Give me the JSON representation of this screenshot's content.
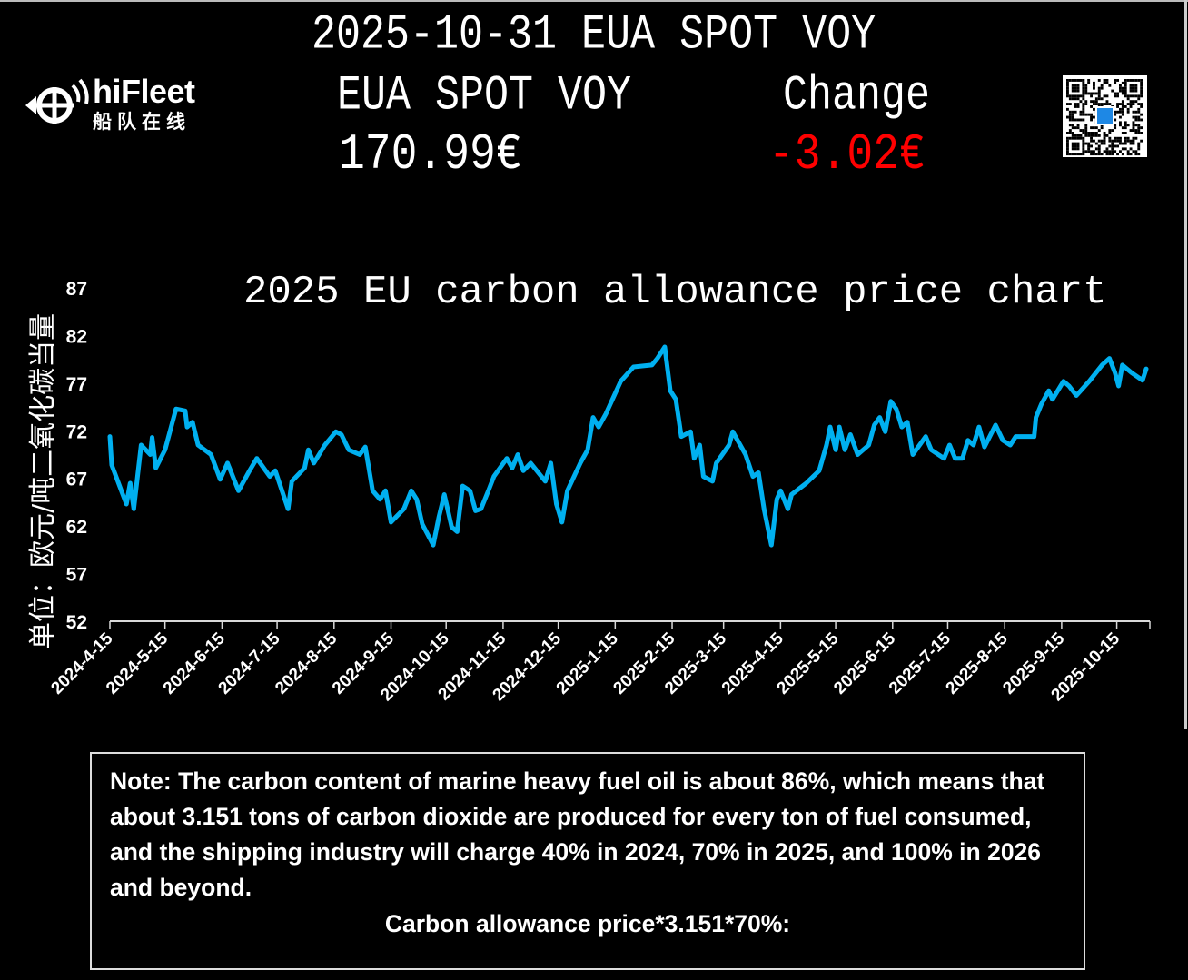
{
  "header": {
    "title": "2025-10-31 EUA SPOT VOY",
    "price_label": "EUA SPOT VOY",
    "change_label": "Change",
    "price_value": "170.99€",
    "change_value": "-3.02€",
    "change_color": "#ff0000"
  },
  "logo": {
    "brand": "hiFleet",
    "brand_cn": "船队在线"
  },
  "qr_code": {
    "icon": "qr-code-icon"
  },
  "chart_data": {
    "type": "line",
    "title": "2025 EU carbon allowance price chart",
    "ylabel": "单位：欧元/吨二氧化碳当量",
    "xlabel": "",
    "ylim": [
      52,
      87
    ],
    "yticks": [
      52,
      57,
      62,
      67,
      72,
      77,
      82,
      87
    ],
    "xlim": [
      "2024-04-15",
      "2025-11-02"
    ],
    "xticks": [
      "2024-4-15",
      "2024-5-15",
      "2024-6-15",
      "2024-7-15",
      "2024-8-15",
      "2024-9-15",
      "2024-10-15",
      "2024-11-15",
      "2024-12-15",
      "2025-1-15",
      "2025-2-15",
      "2025-3-15",
      "2025-4-15",
      "2025-5-15",
      "2025-6-15",
      "2025-7-15",
      "2025-8-15",
      "2025-9-15",
      "2025-10-15"
    ],
    "grid": false,
    "line_color": "#00b0f0",
    "points": [
      [
        "2024-04-15",
        71.4
      ],
      [
        "2024-04-16",
        68.4
      ],
      [
        "2024-04-22",
        65.3
      ],
      [
        "2024-04-24",
        64.3
      ],
      [
        "2024-04-26",
        66.5
      ],
      [
        "2024-04-28",
        63.8
      ],
      [
        "2024-05-02",
        70.5
      ],
      [
        "2024-05-07",
        69.5
      ],
      [
        "2024-05-08",
        71.3
      ],
      [
        "2024-05-10",
        68.1
      ],
      [
        "2024-05-15",
        70.0
      ],
      [
        "2024-05-21",
        74.3
      ],
      [
        "2024-05-26",
        74.1
      ],
      [
        "2024-05-27",
        72.4
      ],
      [
        "2024-05-30",
        72.9
      ],
      [
        "2024-06-02",
        70.5
      ],
      [
        "2024-06-09",
        69.5
      ],
      [
        "2024-06-14",
        66.9
      ],
      [
        "2024-06-18",
        68.6
      ],
      [
        "2024-06-24",
        65.7
      ],
      [
        "2024-06-30",
        67.8
      ],
      [
        "2024-07-04",
        69.1
      ],
      [
        "2024-07-11",
        67.2
      ],
      [
        "2024-07-14",
        67.8
      ],
      [
        "2024-07-21",
        63.8
      ],
      [
        "2024-07-23",
        66.7
      ],
      [
        "2024-07-30",
        68.1
      ],
      [
        "2024-08-01",
        70.0
      ],
      [
        "2024-08-04",
        68.6
      ],
      [
        "2024-08-10",
        70.5
      ],
      [
        "2024-08-16",
        71.9
      ],
      [
        "2024-08-19",
        71.6
      ],
      [
        "2024-08-23",
        70.0
      ],
      [
        "2024-08-29",
        69.5
      ],
      [
        "2024-09-01",
        70.3
      ],
      [
        "2024-09-05",
        65.7
      ],
      [
        "2024-09-09",
        64.8
      ],
      [
        "2024-09-12",
        65.7
      ],
      [
        "2024-09-15",
        62.4
      ],
      [
        "2024-09-22",
        63.8
      ],
      [
        "2024-09-26",
        65.7
      ],
      [
        "2024-09-29",
        64.8
      ],
      [
        "2024-10-02",
        62.2
      ],
      [
        "2024-10-08",
        60.0
      ],
      [
        "2024-10-11",
        62.9
      ],
      [
        "2024-10-14",
        65.3
      ],
      [
        "2024-10-18",
        61.9
      ],
      [
        "2024-10-21",
        61.4
      ],
      [
        "2024-10-24",
        66.2
      ],
      [
        "2024-10-28",
        65.7
      ],
      [
        "2024-10-31",
        63.6
      ],
      [
        "2024-11-03",
        63.8
      ],
      [
        "2024-11-07",
        65.7
      ],
      [
        "2024-11-10",
        67.2
      ],
      [
        "2024-11-17",
        69.1
      ],
      [
        "2024-11-20",
        68.1
      ],
      [
        "2024-11-23",
        69.5
      ],
      [
        "2024-11-26",
        67.8
      ],
      [
        "2024-11-30",
        68.6
      ],
      [
        "2024-12-08",
        66.7
      ],
      [
        "2024-12-11",
        68.6
      ],
      [
        "2024-12-14",
        64.3
      ],
      [
        "2024-12-17",
        62.4
      ],
      [
        "2024-12-20",
        65.7
      ],
      [
        "2024-12-27",
        68.6
      ],
      [
        "2024-12-31",
        70.0
      ],
      [
        "2025-01-03",
        73.4
      ],
      [
        "2025-01-06",
        72.4
      ],
      [
        "2025-01-10",
        73.8
      ],
      [
        "2025-01-18",
        77.2
      ],
      [
        "2025-01-25",
        78.7
      ],
      [
        "2025-02-04",
        78.9
      ],
      [
        "2025-02-07",
        79.6
      ],
      [
        "2025-02-11",
        80.8
      ],
      [
        "2025-02-14",
        76.2
      ],
      [
        "2025-02-17",
        75.3
      ],
      [
        "2025-02-20",
        71.4
      ],
      [
        "2025-02-25",
        71.9
      ],
      [
        "2025-02-27",
        69.1
      ],
      [
        "2025-03-02",
        70.5
      ],
      [
        "2025-03-04",
        67.2
      ],
      [
        "2025-03-09",
        66.7
      ],
      [
        "2025-03-11",
        68.6
      ],
      [
        "2025-03-18",
        70.5
      ],
      [
        "2025-03-20",
        71.9
      ],
      [
        "2025-03-27",
        69.5
      ],
      [
        "2025-03-31",
        67.2
      ],
      [
        "2025-04-03",
        67.6
      ],
      [
        "2025-04-06",
        63.8
      ],
      [
        "2025-04-10",
        60.0
      ],
      [
        "2025-04-13",
        64.8
      ],
      [
        "2025-04-15",
        65.7
      ],
      [
        "2025-04-19",
        63.8
      ],
      [
        "2025-04-21",
        65.3
      ],
      [
        "2025-04-29",
        66.5
      ],
      [
        "2025-05-06",
        67.8
      ],
      [
        "2025-05-10",
        70.5
      ],
      [
        "2025-05-12",
        72.4
      ],
      [
        "2025-05-15",
        70.0
      ],
      [
        "2025-05-17",
        72.4
      ],
      [
        "2025-05-20",
        70.0
      ],
      [
        "2025-05-23",
        71.6
      ],
      [
        "2025-05-27",
        69.5
      ],
      [
        "2025-06-02",
        70.5
      ],
      [
        "2025-06-05",
        72.6
      ],
      [
        "2025-06-08",
        73.4
      ],
      [
        "2025-06-11",
        71.9
      ],
      [
        "2025-06-14",
        75.1
      ],
      [
        "2025-06-17",
        74.3
      ],
      [
        "2025-06-20",
        72.4
      ],
      [
        "2025-06-23",
        72.9
      ],
      [
        "2025-06-26",
        69.5
      ],
      [
        "2025-07-03",
        71.4
      ],
      [
        "2025-07-06",
        70.0
      ],
      [
        "2025-07-13",
        69.1
      ],
      [
        "2025-07-16",
        70.5
      ],
      [
        "2025-07-19",
        69.1
      ],
      [
        "2025-07-23",
        69.1
      ],
      [
        "2025-07-26",
        71.0
      ],
      [
        "2025-07-29",
        70.5
      ],
      [
        "2025-08-01",
        72.4
      ],
      [
        "2025-08-04",
        70.3
      ],
      [
        "2025-08-10",
        72.6
      ],
      [
        "2025-08-14",
        71.0
      ],
      [
        "2025-08-18",
        70.5
      ],
      [
        "2025-08-21",
        71.4
      ],
      [
        "2025-08-31",
        71.4
      ],
      [
        "2025-09-01",
        73.4
      ],
      [
        "2025-09-04",
        74.8
      ],
      [
        "2025-09-08",
        76.2
      ],
      [
        "2025-09-10",
        75.3
      ],
      [
        "2025-09-16",
        77.2
      ],
      [
        "2025-09-19",
        76.7
      ],
      [
        "2025-09-23",
        75.7
      ],
      [
        "2025-09-30",
        77.2
      ],
      [
        "2025-10-07",
        78.9
      ],
      [
        "2025-10-11",
        79.6
      ],
      [
        "2025-10-14",
        78.1
      ],
      [
        "2025-10-16",
        76.7
      ],
      [
        "2025-10-18",
        78.9
      ],
      [
        "2025-10-23",
        78.1
      ],
      [
        "2025-10-29",
        77.3
      ],
      [
        "2025-10-31",
        78.5
      ]
    ]
  },
  "note": {
    "text": "Note: The carbon content of marine heavy fuel oil is about 86%, which means that about 3.151 tons of carbon dioxide are produced for every ton of fuel consumed, and the shipping industry will charge 40% in 2024, 70% in 2025, and 100% in 2026 and beyond.",
    "formula": "Carbon allowance price*3.151*70%:"
  }
}
